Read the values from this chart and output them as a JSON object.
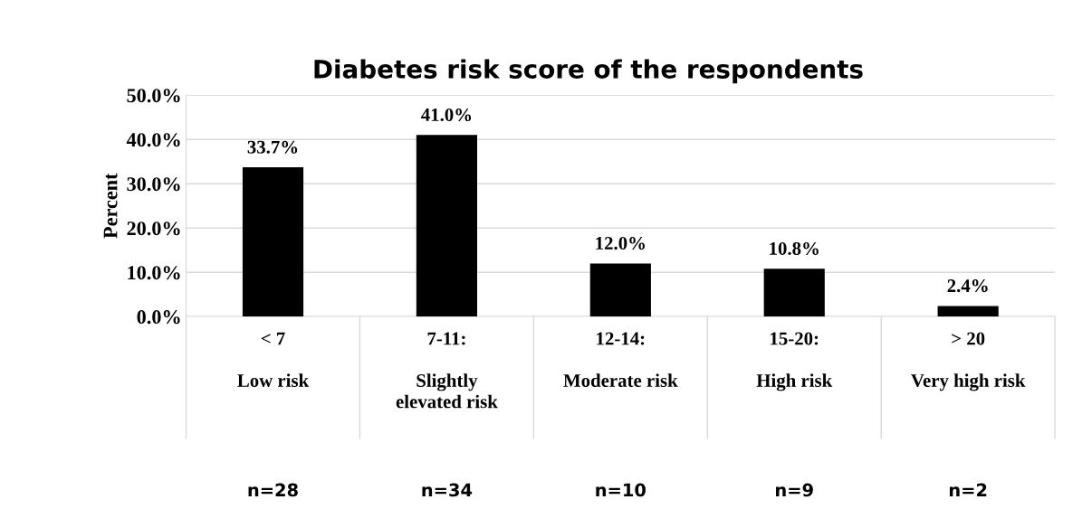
{
  "chart_data": {
    "type": "bar",
    "title": "Diabetes risk score of the respondents",
    "ylabel": "Percent",
    "categories": [
      "< 7\n\nLow risk",
      "7-11:\n\nSlightly\nelevated risk",
      "12-14:\n\nModerate risk",
      "15-20:\n\nHigh risk",
      "> 20\n\nVery high risk"
    ],
    "values": [
      33.7,
      41.0,
      12.0,
      10.8,
      2.4
    ],
    "color": "#000000",
    "value_labels": [
      "33.7%",
      "41.0%",
      "12.0%",
      "10.8%",
      "2.4%"
    ],
    "ylim": [
      0,
      50
    ],
    "yticks": [
      {
        "value": 0,
        "label": "0.0%"
      },
      {
        "value": 10,
        "label": "10.0%"
      },
      {
        "value": 20,
        "label": "20.0%"
      },
      {
        "value": 30,
        "label": "30.0%"
      },
      {
        "value": 40,
        "label": "40.0%"
      },
      {
        "value": 50,
        "label": "50.0%"
      }
    ],
    "grid": "y",
    "legend": false,
    "annotations": [
      "n=28",
      "n=34",
      "n=10",
      "n=9",
      "n=2"
    ]
  }
}
